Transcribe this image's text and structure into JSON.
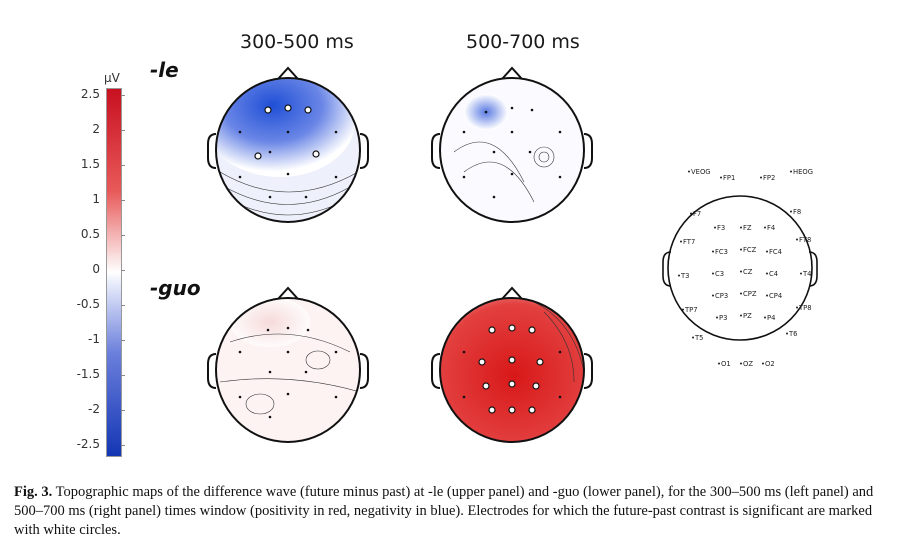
{
  "column_titles": [
    "300-500 ms",
    "500-700 ms"
  ],
  "conditions": [
    "-le",
    "-guo"
  ],
  "colorbar": {
    "unit": "µV",
    "ticks": [
      "2.5",
      "2",
      "1.5",
      "1",
      "0.5",
      "0",
      "-0.5",
      "-1",
      "-1.5",
      "-2",
      "-2.5"
    ],
    "positive_color": "#c81020",
    "negative_color": "#1436b4"
  },
  "electrode_labels": [
    "VEOG",
    "FP1",
    "FP2",
    "HEOG",
    "F7",
    "F3",
    "FZ",
    "F4",
    "F8",
    "FT7",
    "FC3",
    "FCZ",
    "FC4",
    "FT8",
    "T3",
    "C3",
    "CZ",
    "C4",
    "T4",
    "CP3",
    "CPZ",
    "CP4",
    "TP7",
    "P3",
    "PZ",
    "P4",
    "TP8",
    "T5",
    "T6",
    "O1",
    "OZ",
    "O2"
  ],
  "caption": {
    "label": "Fig. 3.",
    "text": "Topographic maps of the difference wave (future minus past) at -le (upper panel) and -guo (lower panel), for the 300–500 ms (left panel) and 500–700 ms (right panel) times window (positivity in red, negativity in blue). Electrodes for which the future-past contrast is significant are marked with white circles."
  }
}
